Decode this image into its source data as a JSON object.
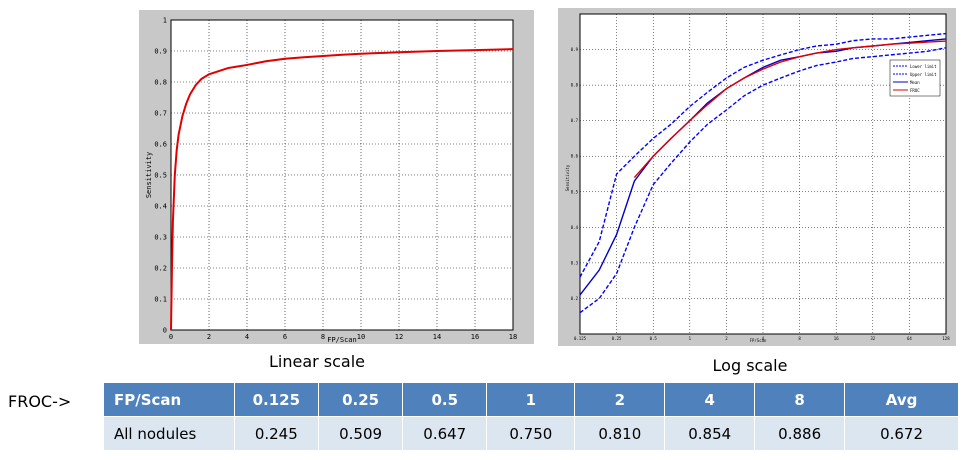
{
  "charts": {
    "linear": {
      "caption": "Linear scale",
      "xlabel": "FP/Scan",
      "ylabel": "Sensitivity",
      "xticks": [
        "0",
        "2",
        "4",
        "6",
        "8",
        "10",
        "12",
        "14",
        "16",
        "18"
      ],
      "yticks": [
        "0",
        "0.1",
        "0.2",
        "0.3",
        "0.4",
        "0.5",
        "0.6",
        "0.7",
        "0.8",
        "0.9",
        "1"
      ]
    },
    "log": {
      "caption": "Log scale",
      "xlabel": "FP/Scan",
      "ylabel": "Sensitivity",
      "xticks": [
        "0.125",
        "0.25",
        "0.5",
        "1",
        "2",
        "4",
        "8",
        "16",
        "32",
        "64",
        "128"
      ],
      "yticks": [
        "0.2",
        "0.3",
        "0.4",
        "0.5",
        "0.6",
        "0.7",
        "0.8",
        "0.9"
      ],
      "legend": [
        "Lower limit",
        "Upper limit",
        "Mean",
        "FROC"
      ]
    }
  },
  "chart_data": [
    {
      "type": "line",
      "xlim": [
        0,
        18
      ],
      "ylim": [
        0,
        1
      ],
      "grid": true,
      "series": [
        {
          "color": "#e00000",
          "x": [
            0,
            0.05,
            0.1,
            0.2,
            0.3,
            0.4,
            0.5,
            0.6,
            0.8,
            1.0,
            1.3,
            1.6,
            2.0,
            2.5,
            3.0,
            3.5,
            4.0,
            5.0,
            6.0,
            7.0,
            8.0,
            9.0,
            10.0,
            12.0,
            14.0,
            16.0,
            18.0
          ],
          "y": [
            0,
            0.2,
            0.35,
            0.5,
            0.58,
            0.63,
            0.66,
            0.69,
            0.73,
            0.76,
            0.79,
            0.81,
            0.825,
            0.835,
            0.845,
            0.85,
            0.855,
            0.867,
            0.875,
            0.88,
            0.884,
            0.888,
            0.891,
            0.896,
            0.9,
            0.903,
            0.906
          ]
        }
      ]
    },
    {
      "type": "line",
      "log_x": true,
      "xlim": [
        0.125,
        128
      ],
      "ylim": [
        0.1,
        1.0
      ],
      "grid": true,
      "legend_position": "top-right",
      "series": [
        {
          "name": "Lower limit",
          "color": "#0000ff",
          "dashed": true,
          "x": [
            0.125,
            0.18,
            0.25,
            0.35,
            0.5,
            0.7,
            1,
            1.4,
            2,
            2.8,
            4,
            5.6,
            8,
            11,
            16,
            22,
            32,
            45,
            64,
            90,
            128
          ],
          "y": [
            0.16,
            0.2,
            0.27,
            0.4,
            0.52,
            0.58,
            0.64,
            0.69,
            0.73,
            0.77,
            0.8,
            0.82,
            0.84,
            0.855,
            0.865,
            0.875,
            0.88,
            0.885,
            0.89,
            0.895,
            0.905
          ]
        },
        {
          "name": "Upper limit",
          "color": "#0000ff",
          "dashed": true,
          "x": [
            0.125,
            0.18,
            0.25,
            0.35,
            0.5,
            0.7,
            1,
            1.4,
            2,
            2.8,
            4,
            5.6,
            8,
            11,
            16,
            22,
            32,
            45,
            64,
            90,
            128
          ],
          "y": [
            0.26,
            0.36,
            0.55,
            0.6,
            0.65,
            0.69,
            0.74,
            0.78,
            0.82,
            0.85,
            0.87,
            0.885,
            0.9,
            0.91,
            0.915,
            0.925,
            0.93,
            0.93,
            0.935,
            0.94,
            0.945
          ]
        },
        {
          "name": "Mean",
          "color": "#0000cc",
          "dashed": false,
          "x": [
            0.125,
            0.18,
            0.25,
            0.35,
            0.5,
            0.7,
            1,
            1.4,
            2,
            2.8,
            4,
            5.6,
            8,
            11,
            16,
            22,
            32,
            45,
            64,
            90,
            128
          ],
          "y": [
            0.21,
            0.28,
            0.38,
            0.53,
            0.6,
            0.65,
            0.7,
            0.75,
            0.79,
            0.82,
            0.85,
            0.87,
            0.88,
            0.89,
            0.895,
            0.905,
            0.91,
            0.915,
            0.92,
            0.925,
            0.93
          ]
        },
        {
          "name": "FROC",
          "color": "#e00000",
          "dashed": false,
          "x": [
            0.35,
            0.5,
            0.7,
            1,
            1.4,
            2,
            2.8,
            4,
            5.6,
            8,
            11,
            16,
            22,
            32,
            45,
            64,
            90,
            128
          ],
          "y": [
            0.54,
            0.6,
            0.65,
            0.7,
            0.745,
            0.79,
            0.82,
            0.845,
            0.865,
            0.88,
            0.89,
            0.9,
            0.905,
            0.91,
            0.915,
            0.918,
            0.921,
            0.924
          ]
        }
      ]
    },
    {
      "type": "table",
      "columns": [
        "FP/Scan",
        "0.125",
        "0.25",
        "0.5",
        "1",
        "2",
        "4",
        "8",
        "Avg"
      ],
      "rows": [
        [
          "All nodules",
          "0.245",
          "0.509",
          "0.647",
          "0.750",
          "0.810",
          "0.854",
          "0.886",
          "0.672"
        ]
      ]
    }
  ],
  "table": {
    "side_label": "FROC->",
    "colors": {
      "header_bg": "#4f81bd",
      "cell_bg": "#dce6f1",
      "header_text": "#ffffff"
    }
  }
}
